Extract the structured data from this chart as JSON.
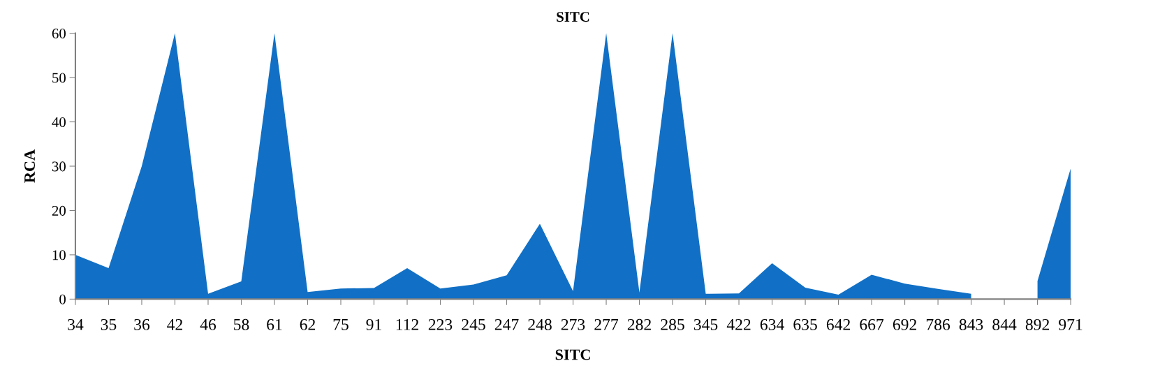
{
  "chart_data": {
    "type": "area",
    "title": "SITC",
    "xlabel": "SITC",
    "ylabel": "RCA",
    "categories": [
      "34",
      "35",
      "36",
      "42",
      "46",
      "58",
      "61",
      "62",
      "75",
      "91",
      "112",
      "223",
      "245",
      "247",
      "248",
      "273",
      "277",
      "282",
      "285",
      "345",
      "422",
      "634",
      "635",
      "642",
      "667",
      "692",
      "786",
      "843",
      "844",
      "892",
      "971"
    ],
    "series": [
      {
        "color": "#1170c5",
        "values": [
          10,
          7,
          30,
          60,
          1.2,
          4,
          60,
          1.6,
          2.4,
          2.5,
          7,
          2.4,
          3.3,
          5.4,
          17,
          1.8,
          60,
          1.5,
          60,
          1.2,
          1.3,
          8.1,
          2.6,
          1.0,
          5.5,
          3.5,
          2.3,
          1.2,
          null,
          4.1,
          29.5
        ]
      }
    ],
    "ylim": [
      0,
      60
    ],
    "yticks": [
      0,
      10,
      20,
      30,
      40,
      50,
      60
    ],
    "grid": false,
    "legend": false
  }
}
